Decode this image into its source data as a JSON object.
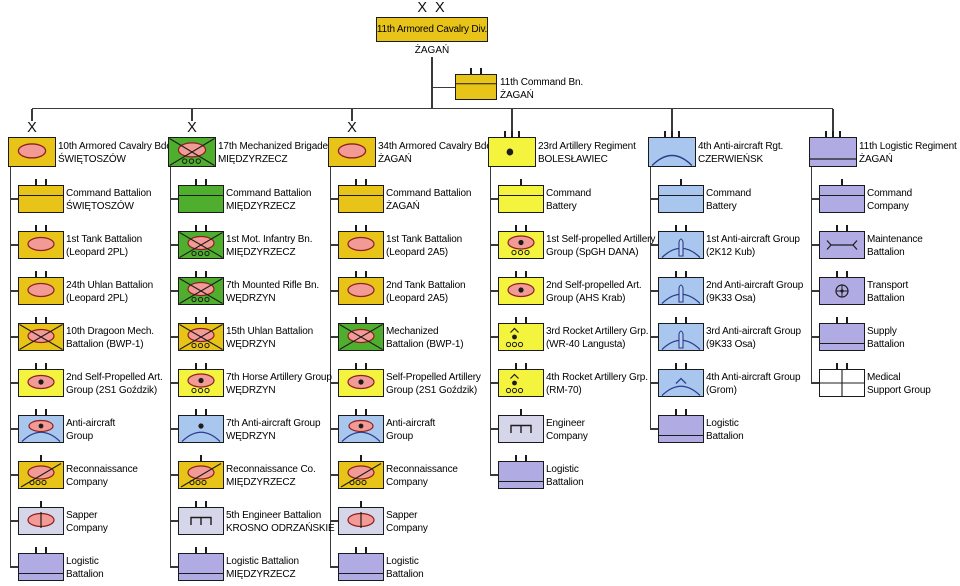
{
  "page": {
    "background": "#ffffff"
  },
  "colors": {
    "gold": "#e8c318",
    "yellow": "#f4f43f",
    "green": "#4fae2e",
    "blue": "#a8c6ee",
    "lavender": "#b1abe4",
    "engineer_light": "#d6d6ea",
    "white": "#ffffff",
    "pink": "#f29a96",
    "pink_stroke": "#8f1f1f",
    "blue_stroke": "#2c3c8c",
    "missile": "#bccff1",
    "line": "#3a3a3a"
  },
  "division": {
    "echelon": "X X",
    "name": "11th Armored Cavalry Div.",
    "location": "ŻAGAŃ",
    "color": "gold"
  },
  "command_battalion": {
    "name": "11th Command Bn.",
    "location": "ŻAGAŃ",
    "color": "gold",
    "symbol": "hq",
    "ticks": 2
  },
  "columns": [
    {
      "header": {
        "name": "10th Armored Cavalry Bde.",
        "location": "ŚWIĘTOSZÓW",
        "color": "gold",
        "symbol": "armor",
        "echelon": "X"
      },
      "units": [
        {
          "line1": "Command Battalion",
          "line2": "ŚWIĘTOSZÓW",
          "color": "gold",
          "symbol": "hq",
          "ticks": 2
        },
        {
          "line1": "1st Tank Battalion",
          "line2": "(Leopard 2PL)",
          "color": "gold",
          "symbol": "armor",
          "ticks": 2
        },
        {
          "line1": "24th Uhlan Battalion",
          "line2": "(Leopard 2PL)",
          "color": "gold",
          "symbol": "armor",
          "ticks": 2
        },
        {
          "line1": "10th Dragoon Mech.",
          "line2": "Battalion (BWP-1)",
          "color": "gold",
          "symbol": "mech",
          "ticks": 2
        },
        {
          "line1": "2nd Self-Propelled Art.",
          "line2": "Group (2S1 Goździk)",
          "color": "yellow",
          "symbol": "sp-art",
          "ticks": 2
        },
        {
          "line1": "Anti-aircraft",
          "line2": "Group",
          "color": "blue",
          "symbol": "aa-sp",
          "ticks": 2
        },
        {
          "line1": "Reconnaissance",
          "line2": "Company",
          "color": "gold",
          "symbol": "recon",
          "ticks": 1
        },
        {
          "line1": "Sapper",
          "line2": "Company",
          "color": "engineer_light",
          "symbol": "sapper",
          "ticks": 1
        },
        {
          "line1": "Logistic",
          "line2": "Battalion",
          "color": "lavender",
          "symbol": "logistic",
          "ticks": 2
        }
      ]
    },
    {
      "header": {
        "name": "17th Mechanized Brigade",
        "location": "MIĘDZYRZECZ",
        "color": "green",
        "symbol": "mot-inf",
        "echelon": "X"
      },
      "units": [
        {
          "line1": "Command Battalion",
          "line2": "MIĘDZYRZECZ",
          "color": "green",
          "symbol": "hq",
          "ticks": 2
        },
        {
          "line1": "1st Mot. Infantry Bn.",
          "line2": "MIĘDZYRZECZ",
          "color": "green",
          "symbol": "mot-inf",
          "ticks": 2
        },
        {
          "line1": "7th Mounted Rifle Bn.",
          "line2": "WĘDRZYN",
          "color": "green",
          "symbol": "mot-inf",
          "ticks": 2
        },
        {
          "line1": "15th Uhlan Battalion",
          "line2": "WĘDRZYN",
          "color": "gold",
          "symbol": "mot-inf",
          "ticks": 2
        },
        {
          "line1": "7th Horse Artillery Group",
          "line2": "WĘDRZYN",
          "color": "yellow",
          "symbol": "sp-art-wheeled",
          "ticks": 2
        },
        {
          "line1": "7th Anti-aircraft Group",
          "line2": "WĘDRZYN",
          "color": "blue",
          "symbol": "aa-dot",
          "ticks": 2
        },
        {
          "line1": "Reconnaissance Co.",
          "line2": "MIĘDZYRZECZ",
          "color": "gold",
          "symbol": "recon",
          "ticks": 1
        },
        {
          "line1": "5th Engineer Battalion",
          "line2": "KROSNO ODRZAŃSKIE",
          "color": "engineer_light",
          "symbol": "engineer",
          "ticks": 2
        },
        {
          "line1": "Logistic Battalion",
          "line2": "MIĘDZYRZECZ",
          "color": "lavender",
          "symbol": "logistic",
          "ticks": 2
        }
      ]
    },
    {
      "header": {
        "name": "34th Armored Cavalry Bde.",
        "location": "ŻAGAŃ",
        "color": "gold",
        "symbol": "armor",
        "echelon": "X"
      },
      "units": [
        {
          "line1": "Command Battalion",
          "line2": "ŻAGAŃ",
          "color": "gold",
          "symbol": "hq",
          "ticks": 2
        },
        {
          "line1": "1st Tank Battalion",
          "line2": "(Leopard 2A5)",
          "color": "gold",
          "symbol": "armor",
          "ticks": 2
        },
        {
          "line1": "2nd Tank Battalion",
          "line2": "(Leopard 2A5)",
          "color": "gold",
          "symbol": "armor",
          "ticks": 2
        },
        {
          "line1": "Mechanized",
          "line2": "Battalion (BWP-1)",
          "color": "green",
          "symbol": "mech",
          "ticks": 2
        },
        {
          "line1": "Self-Propelled Artillery",
          "line2": "Group (2S1 Goździk)",
          "color": "yellow",
          "symbol": "sp-art",
          "ticks": 2
        },
        {
          "line1": "Anti-aircraft",
          "line2": "Group",
          "color": "blue",
          "symbol": "aa-sp",
          "ticks": 2
        },
        {
          "line1": "Reconnaissance",
          "line2": "Company",
          "color": "gold",
          "symbol": "recon",
          "ticks": 1
        },
        {
          "line1": "Sapper",
          "line2": "Company",
          "color": "engineer_light",
          "symbol": "sapper",
          "ticks": 1
        },
        {
          "line1": "Logistic",
          "line2": "Battalion",
          "color": "lavender",
          "symbol": "logistic",
          "ticks": 2
        }
      ]
    },
    {
      "header": {
        "name": "23rd Artillery Regiment",
        "location": "BOLESŁAWIEC",
        "color": "yellow",
        "symbol": "artillery",
        "echelon": "|||"
      },
      "units": [
        {
          "line1": "Command",
          "line2": "Battery",
          "color": "yellow",
          "symbol": "hq",
          "ticks": 1
        },
        {
          "line1": "1st Self-propelled Artillery",
          "line2": "Group (SpGH DANA)",
          "color": "yellow",
          "symbol": "sp-art-wheeled",
          "ticks": 2
        },
        {
          "line1": "2nd Self-propelled Art.",
          "line2": "Group (AHS Krab)",
          "color": "yellow",
          "symbol": "sp-art",
          "ticks": 2
        },
        {
          "line1": "3rd Rocket Artillery Grp.",
          "line2": "(WR-40 Langusta)",
          "color": "yellow",
          "symbol": "rocket",
          "ticks": 2
        },
        {
          "line1": "4th Rocket Artillery Grp.",
          "line2": "(RM-70)",
          "color": "yellow",
          "symbol": "rocket",
          "ticks": 2
        },
        {
          "line1": "Engineer",
          "line2": "Company",
          "color": "engineer_light",
          "symbol": "engineer",
          "ticks": 1
        },
        {
          "line1": "Logistic",
          "line2": "Battalion",
          "color": "lavender",
          "symbol": "logistic",
          "ticks": 2
        }
      ]
    },
    {
      "header": {
        "name": "4th Anti-aircraft Rgt.",
        "location": "CZERWIEŃSK",
        "color": "blue",
        "symbol": "aa",
        "echelon": "|||"
      },
      "units": [
        {
          "line1": "Command",
          "line2": "Battery",
          "color": "blue",
          "symbol": "hq",
          "ticks": 1
        },
        {
          "line1": "1st Anti-aircraft Group",
          "line2": "(2K12 Kub)",
          "color": "blue",
          "symbol": "aa-missile",
          "ticks": 2
        },
        {
          "line1": "2nd Anti-aircraft Group",
          "line2": "(9K33 Osa)",
          "color": "blue",
          "symbol": "aa-missile",
          "ticks": 2
        },
        {
          "line1": "3rd Anti-aircraft Group",
          "line2": "(9K33 Osa)",
          "color": "blue",
          "symbol": "aa-missile",
          "ticks": 2
        },
        {
          "line1": "4th Anti-aircraft Group",
          "line2": "(Grom)",
          "color": "blue",
          "symbol": "aa-chevron",
          "ticks": 2
        },
        {
          "line1": "Logistic",
          "line2": "Battalion",
          "color": "lavender",
          "symbol": "logistic",
          "ticks": 2
        }
      ]
    },
    {
      "header": {
        "name": "11th Logistic Regiment",
        "location": "ŻAGAŃ",
        "color": "lavender",
        "symbol": "logistic",
        "echelon": "|||"
      },
      "units": [
        {
          "line1": "Command",
          "line2": "Company",
          "color": "lavender",
          "symbol": "hq",
          "ticks": 1
        },
        {
          "line1": "Maintenance",
          "line2": "Battalion",
          "color": "lavender",
          "symbol": "maintenance",
          "ticks": 2
        },
        {
          "line1": "Transport",
          "line2": "Battalion",
          "color": "lavender",
          "symbol": "transport",
          "ticks": 2
        },
        {
          "line1": "Supply",
          "line2": "Battalion",
          "color": "lavender",
          "symbol": "supply",
          "ticks": 2
        },
        {
          "line1": "Medical",
          "line2": "Support Group",
          "color": "white",
          "symbol": "medical",
          "ticks": 2
        }
      ]
    }
  ]
}
